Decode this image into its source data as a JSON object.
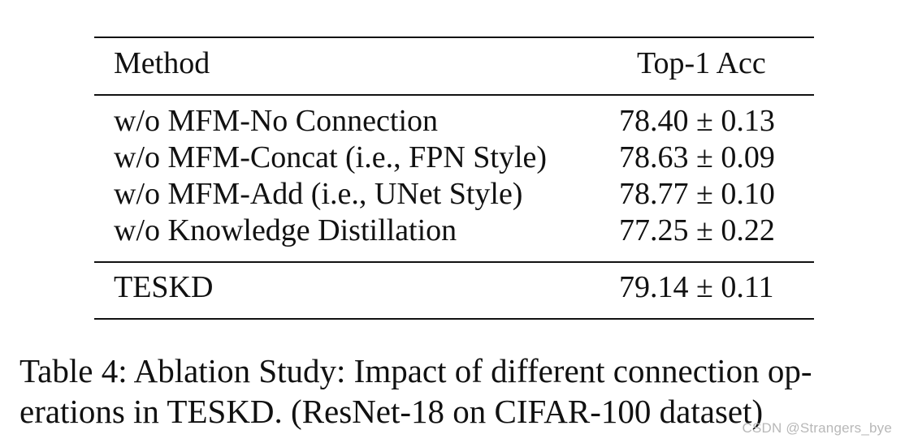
{
  "table": {
    "headers": {
      "method": "Method",
      "accuracy": "Top-1 Acc"
    },
    "ablation_rows": [
      {
        "method": "w/o MFM-No Connection",
        "accuracy": "78.40 ± 0.13"
      },
      {
        "method": "w/o MFM-Concat (i.e., FPN Style)",
        "accuracy": "78.63 ± 0.09"
      },
      {
        "method": "w/o MFM-Add (i.e., UNet Style)",
        "accuracy": "78.77 ± 0.10"
      },
      {
        "method": "w/o Knowledge Distillation",
        "accuracy": "77.25 ± 0.22"
      }
    ],
    "final_row": {
      "method": "TESKD",
      "accuracy": "79.14 ± 0.11"
    }
  },
  "caption": {
    "line1": "Table 4: Ablation Study: Impact of different connection op-",
    "line2": "erations in TESKD. (ResNet-18 on CIFAR-100 dataset)"
  },
  "watermark": "CSDN @Strangers_bye"
}
